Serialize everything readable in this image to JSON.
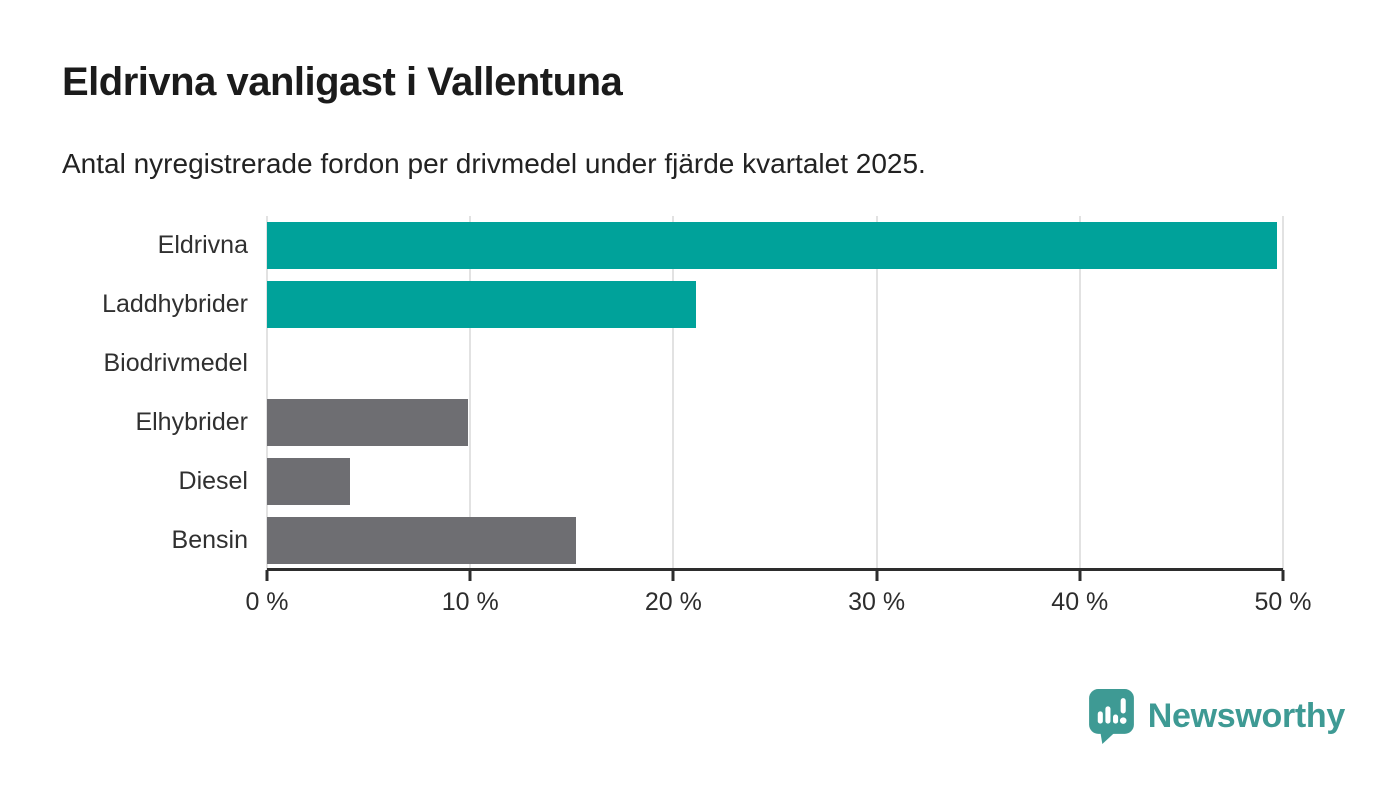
{
  "title": "Eldrivna vanligast i Vallentuna",
  "subtitle": "Antal nyregistrerade fordon per drivmedel under fjärde kvartalet 2025.",
  "colors": {
    "highlight": "#00a29a",
    "muted": "#6e6e72",
    "axis": "#2d2d2d",
    "grid": "#e2e2e2",
    "title_text": "#1b1b1b",
    "logo_teal": "#3e9a94"
  },
  "chart_data": {
    "type": "bar",
    "orientation": "horizontal",
    "title": "Eldrivna vanligast i Vallentuna",
    "subtitle": "Antal nyregistrerade fordon per drivmedel under fjärde kvartalet 2025.",
    "categories": [
      "Eldrivna",
      "Laddhybrider",
      "Biodrivmedel",
      "Elhybrider",
      "Diesel",
      "Bensin"
    ],
    "values": [
      49.7,
      21.1,
      0,
      9.9,
      4.1,
      15.2
    ],
    "unit": "%",
    "bar_colors": [
      "#00a29a",
      "#00a29a",
      "#6e6e72",
      "#6e6e72",
      "#6e6e72",
      "#6e6e72"
    ],
    "xlabel": "",
    "ylabel": "",
    "xlim": [
      0,
      50
    ],
    "x_ticks": [
      0,
      10,
      20,
      30,
      40,
      50
    ],
    "x_tick_labels": [
      "0 %",
      "10 %",
      "20 %",
      "30 %",
      "40 %",
      "50 %"
    ],
    "grid": true,
    "legend": false
  },
  "footer": {
    "brand": "Newsworthy"
  }
}
